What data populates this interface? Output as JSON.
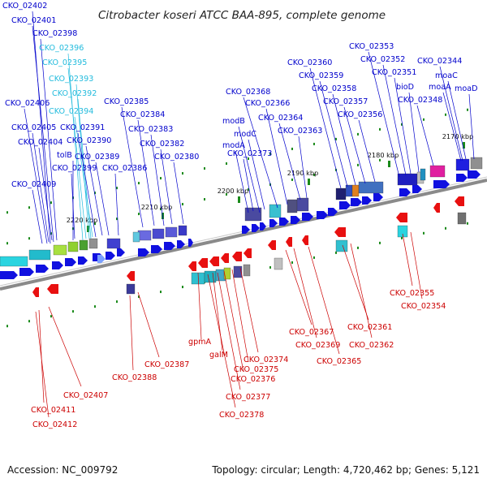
{
  "title": "Citrobacter koseri ATCC BAA-895, complete genome",
  "footer": {
    "accession": "Accession: NC_009792",
    "info": "Topology: circular; Length: 4,720,462 bp; Genes: 5,121"
  },
  "scale_labels": [
    "2220 kbp",
    "2210 kbp",
    "2200 kbp",
    "2190 kbp",
    "2180 kbp",
    "2170 kbp"
  ],
  "forward_labels": [
    "CKO_02402",
    "CKO_02401",
    "CKO_02398",
    "CKO_02396",
    "CKO_02395",
    "CKO_02393",
    "CKO_02392",
    "CKO_02394",
    "CKO_02406",
    "CKO_02405",
    "CKO_02391",
    "CKO_02404",
    "CKO_02390",
    "tolB",
    "CKO_02389",
    "CKO_02399",
    "CKO_02386",
    "CKO_02409",
    "CKO_02385",
    "CKO_02384",
    "CKO_02383",
    "CKO_02382",
    "CKO_02380",
    "CKO_02368",
    "CKO_02366",
    "modB",
    "CKO_02364",
    "modC",
    "CKO_02363",
    "modA",
    "CKO_02373",
    "CKO_02360",
    "CKO_02359",
    "CKO_02358",
    "CKO_02357",
    "CKO_02356",
    "CKO_02353",
    "CKO_02352",
    "CKO_02351",
    "bioD",
    "CKO_02344",
    "moaC",
    "moaA",
    "moaD",
    "CKO_02348"
  ],
  "reverse_labels": [
    "CKO_02355",
    "CKO_02354",
    "CKO_02367",
    "CKO_02361",
    "CKO_02369",
    "CKO_02362",
    "CKO_02365",
    "gpmA",
    "CKO_02387",
    "galM",
    "CKO_02374",
    "CKO_02375",
    "CKO_02388",
    "CKO_02376",
    "CKO_02377",
    "CKO_02407",
    "CKO_02378",
    "CKO_02411",
    "CKO_02412"
  ],
  "colors": {
    "forward_gene": "#1010e0",
    "reverse_gene": "#e81010",
    "tick": "#1a8a1a",
    "backbone": "#8a8a8a",
    "label_forward": "#0000cc",
    "label_forward_light": "#22bbdd",
    "label_reverse": "#cc0000"
  }
}
